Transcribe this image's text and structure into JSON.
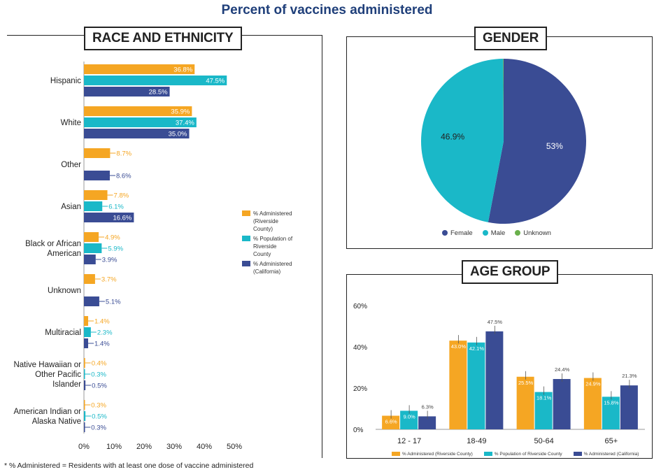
{
  "page": {
    "title": "Percent of vaccines administered",
    "footnote": "* % Administered = Residents with at least one dose of vaccine administered"
  },
  "colors": {
    "orange": "#f5a623",
    "teal": "#1ab8c8",
    "navy": "#3a4c94",
    "green": "#6ab04c"
  },
  "chart_data": [
    {
      "type": "bar",
      "orientation": "horizontal",
      "title": "RACE AND ETHNICITY",
      "categories": [
        "Hispanic",
        "White",
        "Other",
        "Asian",
        "Black or African American",
        "Unknown",
        "Multiracial",
        "Native Hawaiian or Other Pacific Islander",
        "American Indian or Alaska Native"
      ],
      "category_lines": [
        [
          "Hispanic"
        ],
        [
          "White"
        ],
        [
          "Other"
        ],
        [
          "Asian"
        ],
        [
          "Black or African",
          "American"
        ],
        [
          "Unknown"
        ],
        [
          "Multiracial"
        ],
        [
          "Native Hawaiian or",
          "Other Pacific",
          "Islander"
        ],
        [
          "American Indian or",
          "Alaska Native"
        ]
      ],
      "series": [
        {
          "name": "% Administered (Riverside County)",
          "color": "orange",
          "values": [
            36.8,
            35.9,
            8.7,
            7.8,
            4.9,
            3.7,
            1.4,
            0.4,
            0.3
          ]
        },
        {
          "name": "% Population of Riverside County",
          "color": "teal",
          "values": [
            47.5,
            37.4,
            null,
            6.1,
            5.9,
            null,
            2.3,
            0.3,
            0.5
          ]
        },
        {
          "name": "% Administered (California)",
          "color": "navy",
          "values": [
            28.5,
            35.0,
            8.6,
            16.6,
            3.9,
            5.1,
            1.4,
            0.5,
            0.3
          ]
        }
      ],
      "labels": [
        [
          "36.8%",
          "35.9%",
          "8.7%",
          "7.8%",
          "4.9%",
          "3.7%",
          "1.4%",
          "0.4%",
          "0.3%"
        ],
        [
          "47.5%",
          "37.4%",
          "",
          "6.1%",
          "5.9%",
          "",
          "2.3%",
          "0.3%",
          "0.5%"
        ],
        [
          "28.5%",
          "35.0%",
          "8.6%",
          "16.6%",
          "3.9%",
          "5.1%",
          "1.4%",
          "0.5%",
          "0.3%"
        ]
      ],
      "legend_lines": [
        [
          "% Administered",
          "(Riverside",
          "County)"
        ],
        [
          "% Population of",
          "Riverside",
          "County"
        ],
        [
          "% Administered",
          "(California)"
        ]
      ],
      "x_ticks": [
        "0%",
        "10%",
        "20%",
        "30%",
        "40%",
        "50%"
      ],
      "xlim": [
        0,
        50
      ],
      "legend_position": "right"
    },
    {
      "type": "pie",
      "title": "GENDER",
      "slices": [
        {
          "name": "Female",
          "value": 53,
          "label": "53%",
          "color": "navy"
        },
        {
          "name": "Male",
          "value": 46.9,
          "label": "46.9%",
          "color": "teal"
        },
        {
          "name": "Unknown",
          "value": 0.1,
          "label": "",
          "color": "green"
        }
      ],
      "legend_position": "bottom"
    },
    {
      "type": "bar",
      "title": "AGE GROUP",
      "categories": [
        "12 - 17",
        "18-49",
        "50-64",
        "65+"
      ],
      "series": [
        {
          "name": "% Administered (Riverside County)",
          "color": "orange",
          "values": [
            6.6,
            43.0,
            25.5,
            24.9
          ]
        },
        {
          "name": "% Population of Riverside County",
          "color": "teal",
          "values": [
            9.0,
            42.1,
            18.1,
            15.8
          ]
        },
        {
          "name": "% Administered (California)",
          "color": "navy",
          "values": [
            6.3,
            47.5,
            24.4,
            21.3
          ]
        }
      ],
      "labels": [
        [
          "6.6%",
          "43.0%",
          "25.5%",
          "24.9%"
        ],
        [
          "9.0%",
          "42.1%",
          "18.1%",
          "15.8%"
        ],
        [
          "6.3%",
          "47.5%",
          "24.4%",
          "21.3%"
        ]
      ],
      "y_ticks": [
        "0%",
        "20%",
        "40%",
        "60%"
      ],
      "ylim": [
        0,
        60
      ],
      "legend_position": "bottom"
    }
  ]
}
